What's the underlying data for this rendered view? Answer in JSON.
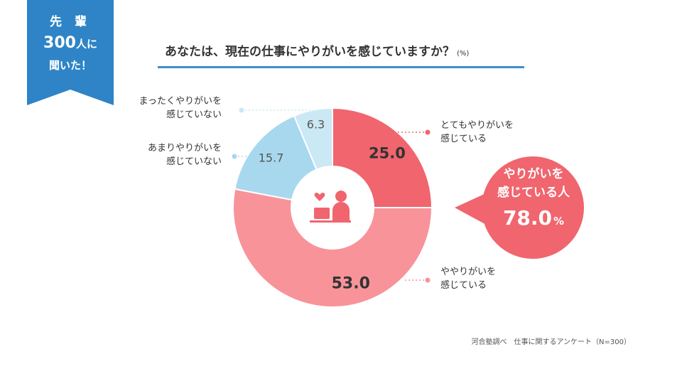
{
  "ribbon": {
    "line1": "先 輩",
    "line2_num": "300",
    "line2_suffix": "人に",
    "line3": "聞いた！",
    "color": "#2e84c6"
  },
  "title": {
    "text": "あなたは、現在の仕事にやりがいを感じていますか？",
    "unit": "(%)"
  },
  "callout": {
    "line1": "やりがいを",
    "line2": "感じている人",
    "value": "78.0",
    "unit": "%",
    "color": "#f0656e"
  },
  "source": "河合塾調べ　仕事に関するアンケート（N=300）",
  "chart_data": {
    "type": "pie",
    "donut": true,
    "start": "top",
    "direction": "clockwise",
    "unit": "%",
    "slices": [
      {
        "label_lines": [
          "とてもやりがいを",
          "感じている"
        ],
        "value": 25.0,
        "display": "25.0",
        "color": "#f0656e"
      },
      {
        "label_lines": [
          "ややりがいを",
          "感じている"
        ],
        "value": 53.0,
        "display": "53.0",
        "color": "#f8939a"
      },
      {
        "label_lines": [
          "あまりやりがいを",
          "感じていない"
        ],
        "value": 15.7,
        "display": "15.7",
        "color": "#a8d8ee"
      },
      {
        "label_lines": [
          "まったくやりがいを",
          "感じていない"
        ],
        "value": 6.3,
        "display": "6.3",
        "color": "#cbe8f5"
      }
    ]
  }
}
